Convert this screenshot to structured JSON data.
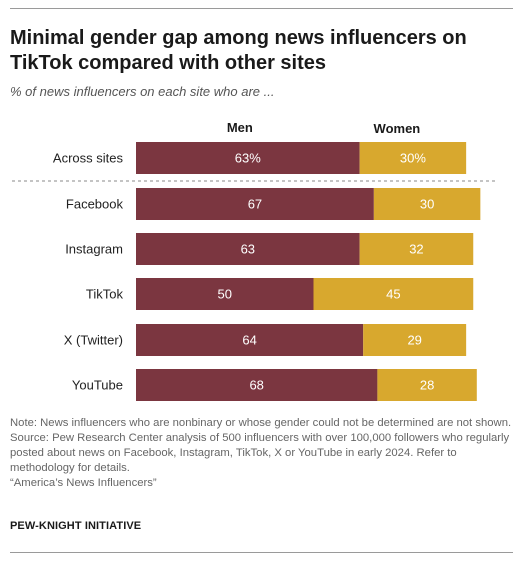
{
  "title": "Minimal gender gap among news influencers on TikTok compared with other sites",
  "subtitle": "% of news influencers on each site who are ...",
  "chart_data": {
    "type": "bar",
    "stacked": true,
    "orientation": "horizontal",
    "categories": [
      "Across sites",
      "Facebook",
      "Instagram",
      "TikTok",
      "X (Twitter)",
      "YouTube"
    ],
    "series": [
      {
        "name": "Men",
        "values": [
          63,
          67,
          63,
          50,
          64,
          68
        ],
        "labels": [
          "63%",
          "67",
          "63",
          "50",
          "64",
          "68"
        ],
        "color": "#7b3640"
      },
      {
        "name": "Women",
        "values": [
          30,
          30,
          32,
          45,
          29,
          28
        ],
        "labels": [
          "30%",
          "30",
          "32",
          "45",
          "29",
          "28"
        ],
        "color": "#d8a82e"
      }
    ],
    "xlim": [
      0,
      100
    ],
    "separator_after_first": true
  },
  "notes": {
    "note": "Note: News influencers who are nonbinary or whose gender could not be determined are not shown.",
    "source": "Source: Pew Research Center analysis of 500 influencers with over 100,000 followers who regularly posted about news on Facebook, Instagram, TikTok, X or YouTube in early 2024. Refer to methodology for details.",
    "report": "“America’s News Influencers”"
  },
  "brand": "PEW-KNIGHT INITIATIVE"
}
